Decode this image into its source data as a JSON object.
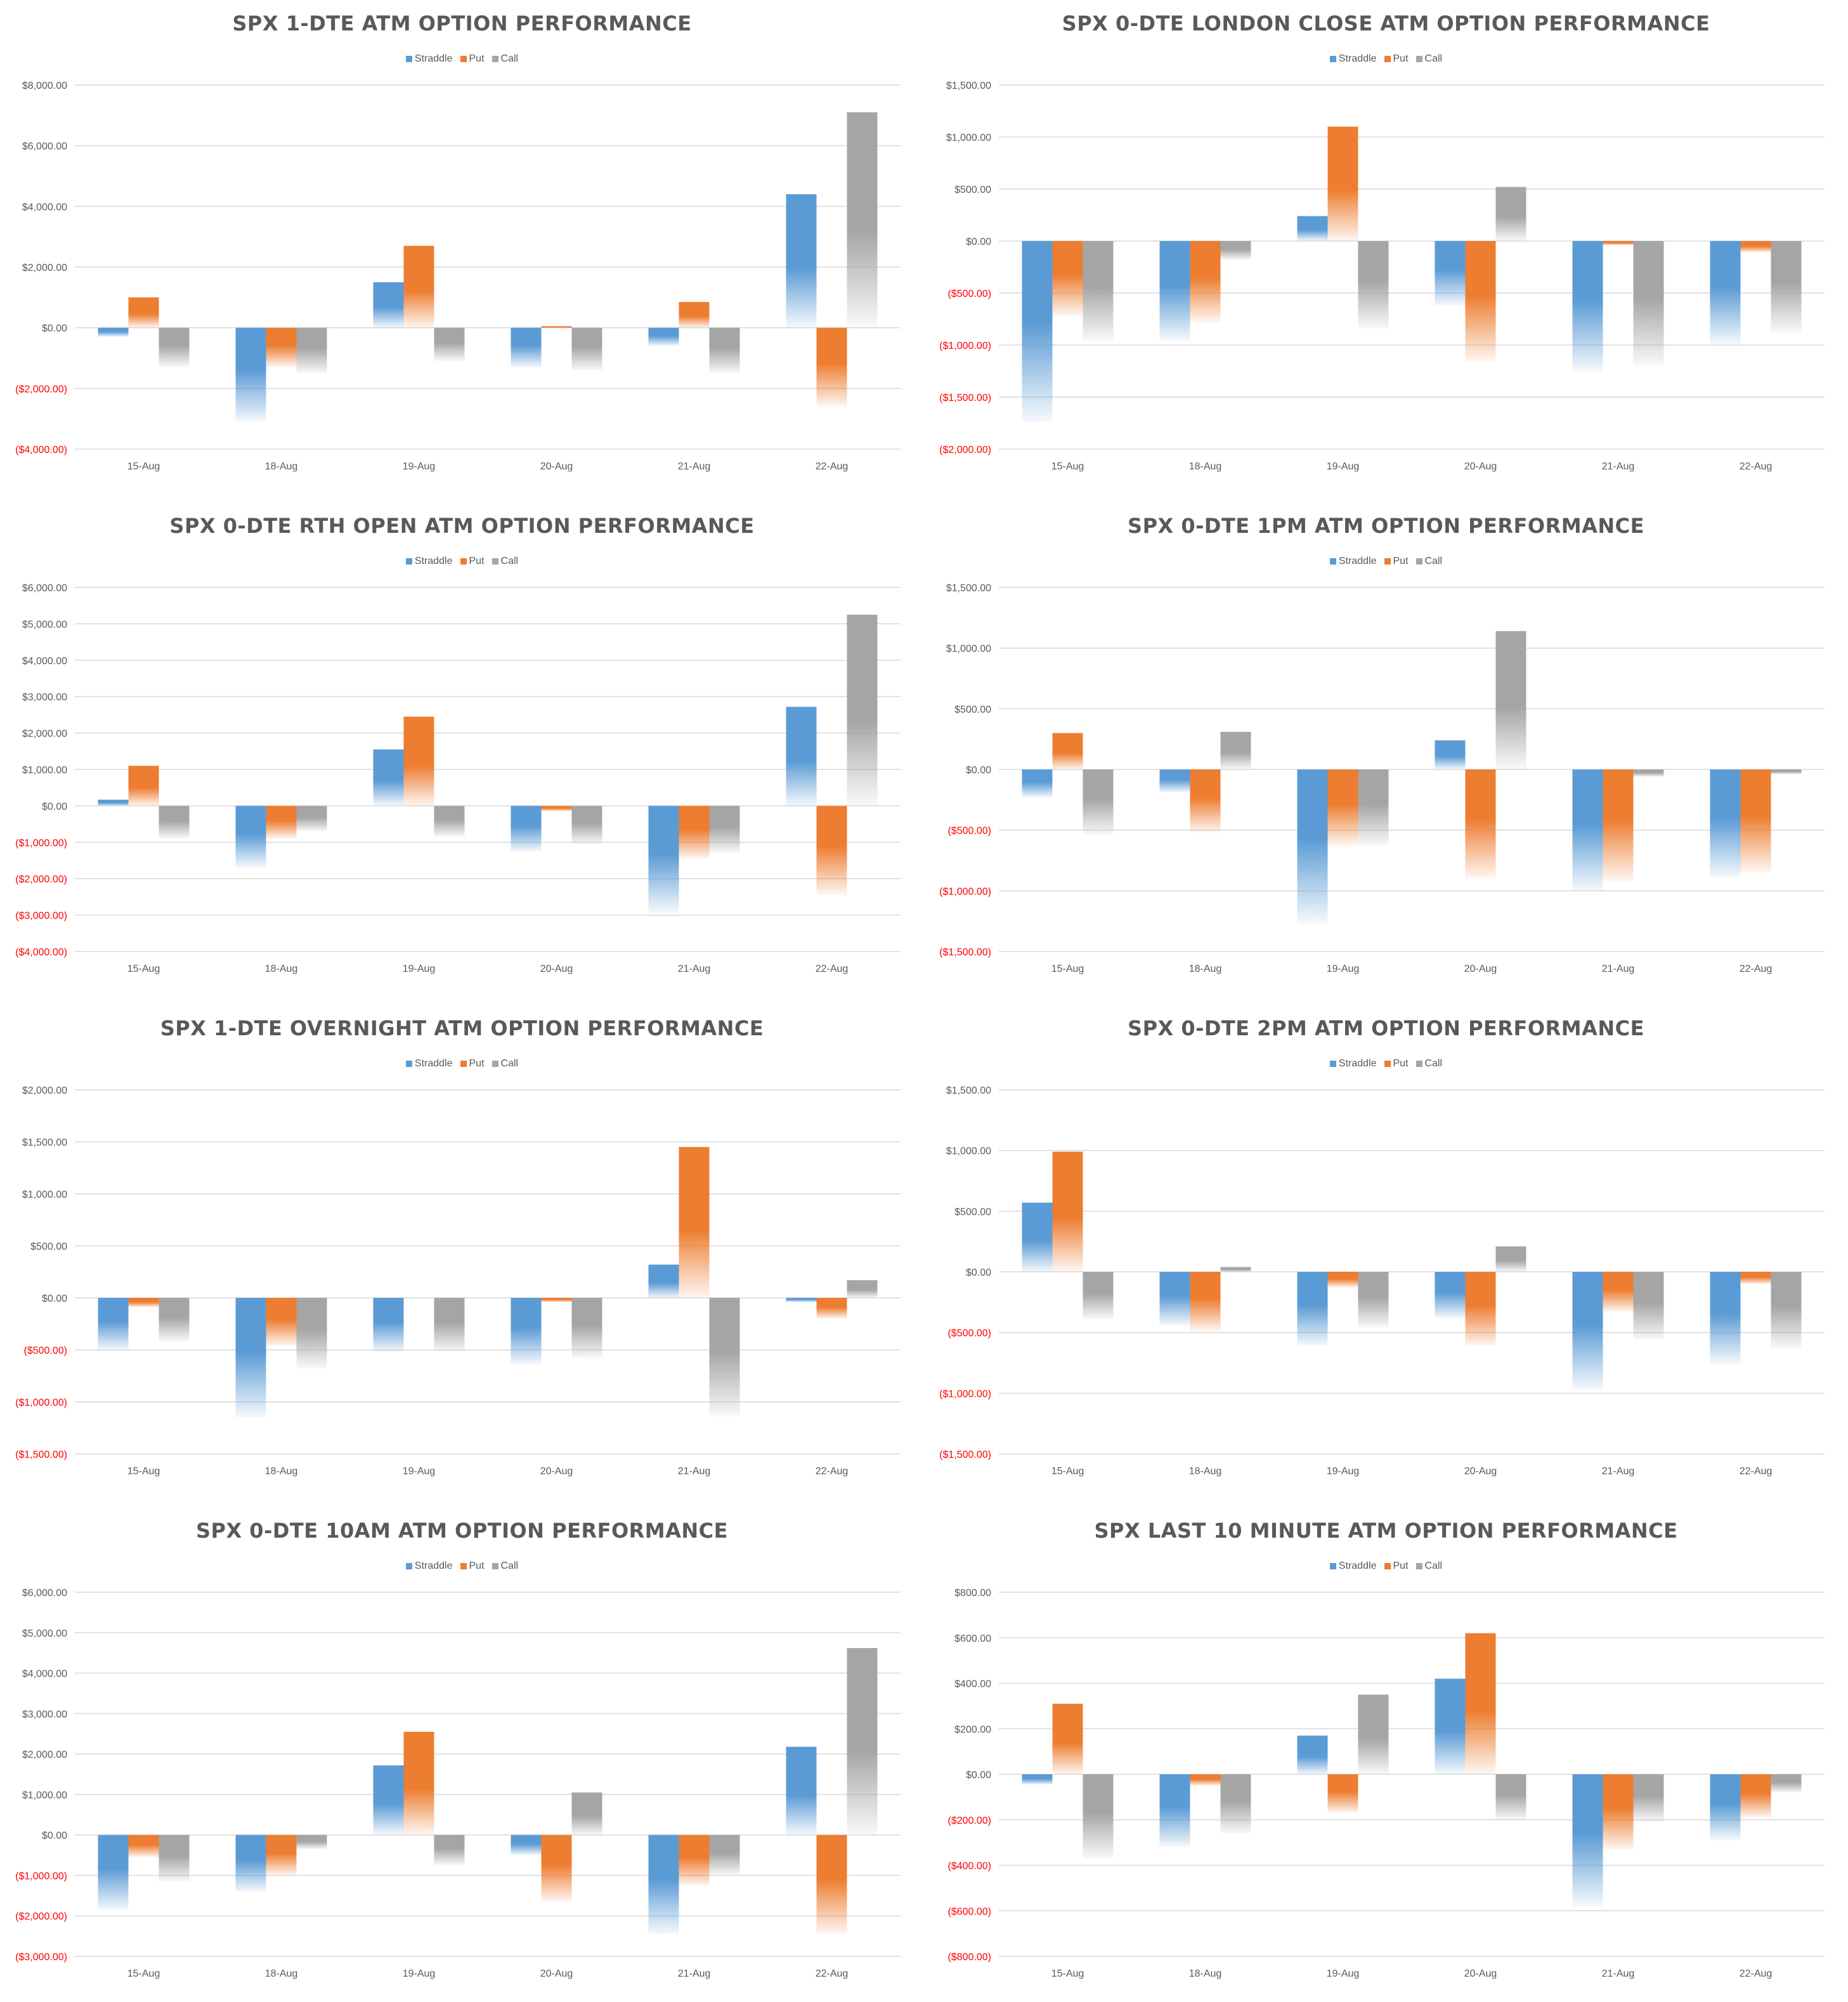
{
  "legend": [
    "Straddle",
    "Put",
    "Call"
  ],
  "colors": {
    "Straddle": "#5b9bd5",
    "Put": "#ed7d31",
    "Call": "#a5a5a5",
    "negative_tick": "#ff0000",
    "tick": "#595959",
    "grid": "#d9d9d9"
  },
  "chart_data": [
    {
      "type": "bar",
      "title": "SPX 1-DTE ATM OPTION PERFORMANCE",
      "categories": [
        "15-Aug",
        "18-Aug",
        "19-Aug",
        "20-Aug",
        "21-Aug",
        "22-Aug"
      ],
      "ylim": [
        -4000,
        8000
      ],
      "yticks": [
        8000,
        6000,
        4000,
        2000,
        0,
        -2000,
        -4000
      ],
      "ytick_labels": [
        "$8,000.00",
        "$6,000.00",
        "$4,000.00",
        "$2,000.00",
        "$0.00",
        "($2,000.00)",
        "($4,000.00)"
      ],
      "series": [
        {
          "name": "Straddle",
          "values": [
            -300,
            -3100,
            1500,
            -1300,
            -600,
            4400
          ]
        },
        {
          "name": "Put",
          "values": [
            1000,
            -1300,
            2700,
            50,
            850,
            -2600
          ]
        },
        {
          "name": "Call",
          "values": [
            -1300,
            -1500,
            -1100,
            -1400,
            -1500,
            7100
          ]
        }
      ]
    },
    {
      "type": "bar",
      "title": "SPX 0-DTE  LONDON CLOSE ATM OPTION PERFORMANCE",
      "categories": [
        "15-Aug",
        "18-Aug",
        "19-Aug",
        "20-Aug",
        "21-Aug",
        "22-Aug"
      ],
      "ylim": [
        -2000,
        1500
      ],
      "yticks": [
        1500,
        1000,
        500,
        0,
        -500,
        -1000,
        -1500,
        -2000
      ],
      "ytick_labels": [
        "$1,500.00",
        "$1,000.00",
        "$500.00",
        "$0.00",
        "($500.00)",
        "($1,000.00)",
        "($1,500.00)",
        "($2,000.00)"
      ],
      "series": [
        {
          "name": "Straddle",
          "values": [
            -1740,
            -960,
            240,
            -620,
            -1260,
            -990
          ]
        },
        {
          "name": "Put",
          "values": [
            -720,
            -780,
            1100,
            -1160,
            -40,
            -110
          ]
        },
        {
          "name": "Call",
          "values": [
            -960,
            -180,
            -840,
            520,
            -1200,
            -880
          ]
        }
      ]
    },
    {
      "type": "bar",
      "title": "SPX 0-DTE RTH OPEN ATM OPTION PERFORMANCE",
      "categories": [
        "15-Aug",
        "18-Aug",
        "19-Aug",
        "20-Aug",
        "21-Aug",
        "22-Aug"
      ],
      "ylim": [
        -4000,
        6000
      ],
      "yticks": [
        6000,
        5000,
        4000,
        3000,
        2000,
        1000,
        0,
        -1000,
        -2000,
        -3000,
        -4000
      ],
      "ytick_labels": [
        "$6,000.00",
        "$5,000.00",
        "$4,000.00",
        "$3,000.00",
        "$2,000.00",
        "$1,000.00",
        "$0.00",
        "($1,000.00)",
        "($2,000.00)",
        "($3,000.00)",
        "($4,000.00)"
      ],
      "series": [
        {
          "name": "Straddle",
          "values": [
            170,
            -1700,
            1550,
            -1250,
            -2950,
            2720
          ]
        },
        {
          "name": "Put",
          "values": [
            1100,
            -900,
            2450,
            -150,
            -1450,
            -2450
          ]
        },
        {
          "name": "Call",
          "values": [
            -900,
            -700,
            -850,
            -1050,
            -1300,
            5250
          ]
        }
      ]
    },
    {
      "type": "bar",
      "title": "SPX 0-DTE 1PM ATM OPTION PERFORMANCE",
      "categories": [
        "15-Aug",
        "18-Aug",
        "19-Aug",
        "20-Aug",
        "21-Aug",
        "22-Aug"
      ],
      "ylim": [
        -1500,
        1500
      ],
      "yticks": [
        1500,
        1000,
        500,
        0,
        -500,
        -1000,
        -1500
      ],
      "ytick_labels": [
        "$1,500.00",
        "$1,000.00",
        "$500.00",
        "$0.00",
        "($500.00)",
        "($1,000.00)",
        "($1,500.00)"
      ],
      "series": [
        {
          "name": "Straddle",
          "values": [
            -230,
            -190,
            -1270,
            240,
            -1000,
            -890
          ]
        },
        {
          "name": "Put",
          "values": [
            300,
            -520,
            -630,
            -900,
            -920,
            -850
          ]
        },
        {
          "name": "Call",
          "values": [
            -540,
            310,
            -630,
            1140,
            -60,
            -40
          ]
        }
      ]
    },
    {
      "type": "bar",
      "title": "SPX 1-DTE OVERNIGHT ATM OPTION PERFORMANCE",
      "categories": [
        "15-Aug",
        "18-Aug",
        "19-Aug",
        "20-Aug",
        "21-Aug",
        "22-Aug"
      ],
      "ylim": [
        -1500,
        2000
      ],
      "yticks": [
        2000,
        1500,
        1000,
        500,
        0,
        -500,
        -1000,
        -1500
      ],
      "ytick_labels": [
        "$2,000.00",
        "$1,500.00",
        "$1,000.00",
        "$500.00",
        "$0.00",
        "($500.00)",
        "($1,000.00)",
        "($1,500.00)"
      ],
      "series": [
        {
          "name": "Straddle",
          "values": [
            -500,
            -1150,
            -520,
            -640,
            320,
            -40
          ]
        },
        {
          "name": "Put",
          "values": [
            -90,
            -460,
            0,
            -40,
            1450,
            -200
          ]
        },
        {
          "name": "Call",
          "values": [
            -420,
            -680,
            -520,
            -580,
            -1140,
            170
          ]
        }
      ]
    },
    {
      "type": "bar",
      "title": "SPX 0-DTE 2PM ATM OPTION PERFORMANCE",
      "categories": [
        "15-Aug",
        "18-Aug",
        "19-Aug",
        "20-Aug",
        "21-Aug",
        "22-Aug"
      ],
      "ylim": [
        -1500,
        1500
      ],
      "yticks": [
        1500,
        1000,
        500,
        0,
        -500,
        -1000,
        -1500
      ],
      "ytick_labels": [
        "$1,500.00",
        "$1,000.00",
        "$500.00",
        "$0.00",
        "($500.00)",
        "($1,000.00)",
        "($1,500.00)"
      ],
      "series": [
        {
          "name": "Straddle",
          "values": [
            570,
            -440,
            -610,
            -380,
            -970,
            -760
          ]
        },
        {
          "name": "Put",
          "values": [
            990,
            -490,
            -130,
            -610,
            -330,
            -100
          ]
        },
        {
          "name": "Call",
          "values": [
            -390,
            40,
            -460,
            210,
            -560,
            -630
          ]
        }
      ]
    },
    {
      "type": "bar",
      "title": "SPX 0-DTE 10AM ATM OPTION PERFORMANCE",
      "categories": [
        "15-Aug",
        "18-Aug",
        "19-Aug",
        "20-Aug",
        "21-Aug",
        "22-Aug"
      ],
      "ylim": [
        -3000,
        6000
      ],
      "yticks": [
        6000,
        5000,
        4000,
        3000,
        2000,
        1000,
        0,
        -1000,
        -2000,
        -3000
      ],
      "ytick_labels": [
        "$6,000.00",
        "$5,000.00",
        "$4,000.00",
        "$3,000.00",
        "$2,000.00",
        "$1,000.00",
        "$0.00",
        "($1,000.00)",
        "($2,000.00)",
        "($3,000.00)"
      ],
      "series": [
        {
          "name": "Straddle",
          "values": [
            -1850,
            -1400,
            1720,
            -500,
            -2450,
            2180
          ]
        },
        {
          "name": "Put",
          "values": [
            -550,
            -1000,
            2550,
            -1650,
            -1250,
            -2450
          ]
        },
        {
          "name": "Call",
          "values": [
            -1150,
            -350,
            -750,
            1050,
            -1000,
            4620
          ]
        }
      ]
    },
    {
      "type": "bar",
      "title": "SPX LAST 10 MINUTE ATM OPTION PERFORMANCE",
      "categories": [
        "15-Aug",
        "18-Aug",
        "19-Aug",
        "20-Aug",
        "21-Aug",
        "22-Aug"
      ],
      "ylim": [
        -800,
        800
      ],
      "yticks": [
        800,
        600,
        400,
        200,
        0,
        -200,
        -400,
        -600,
        -800
      ],
      "ytick_labels": [
        "$800.00",
        "$600.00",
        "$400.00",
        "$200.00",
        "$0.00",
        "($200.00)",
        "($400.00)",
        "($600.00)",
        "($800.00)"
      ],
      "series": [
        {
          "name": "Straddle",
          "values": [
            -45,
            -320,
            170,
            420,
            -580,
            -290
          ]
        },
        {
          "name": "Put",
          "values": [
            310,
            -50,
            -170,
            620,
            -330,
            -190
          ]
        },
        {
          "name": "Call",
          "values": [
            -370,
            -260,
            350,
            -200,
            -210,
            -80
          ]
        }
      ]
    }
  ]
}
